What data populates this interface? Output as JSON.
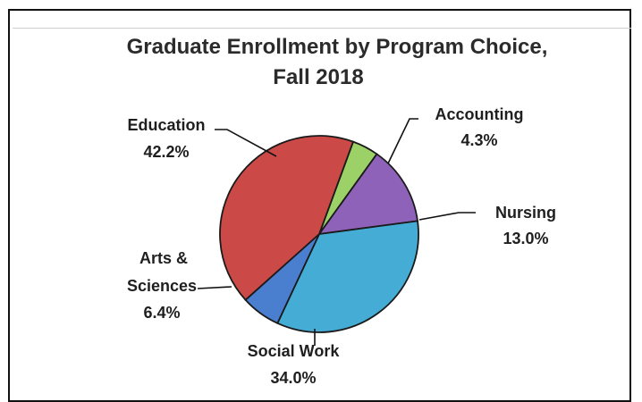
{
  "chart_data": {
    "type": "pie",
    "title": "Graduate Enrollment by Program Choice,",
    "subtitle": "Fall 2018",
    "slices": [
      {
        "key": "accounting",
        "label": "Accounting",
        "value": 4.3,
        "value_label": "4.3%",
        "color": "#9bd167"
      },
      {
        "key": "nursing",
        "label": "Nursing",
        "value": 13.0,
        "value_label": "13.0%",
        "color": "#8e62b8"
      },
      {
        "key": "social-work",
        "label": "Social Work",
        "value": 34.0,
        "value_label": "34.0%",
        "color": "#45acd5"
      },
      {
        "key": "arts-sciences",
        "label": "Arts &",
        "label_line2": "Sciences",
        "value": 6.4,
        "value_label": "6.4%",
        "color": "#4a7fd0"
      },
      {
        "key": "education",
        "label": "Education",
        "value": 42.2,
        "value_label": "42.2%",
        "color": "#cb4a47"
      }
    ]
  }
}
